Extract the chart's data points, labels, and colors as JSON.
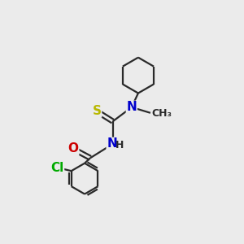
{
  "bg_color": "#ebebeb",
  "bond_color": "#2a2a2a",
  "line_width": 1.6,
  "atom_colors": {
    "S": "#b8b800",
    "N": "#0000cc",
    "O": "#cc0000",
    "Cl": "#00aa00",
    "C": "#2a2a2a",
    "H": "#2a2a2a"
  },
  "font_size_atom": 11,
  "font_size_small": 9,
  "figsize": [
    3.0,
    3.0
  ],
  "dpi": 100
}
